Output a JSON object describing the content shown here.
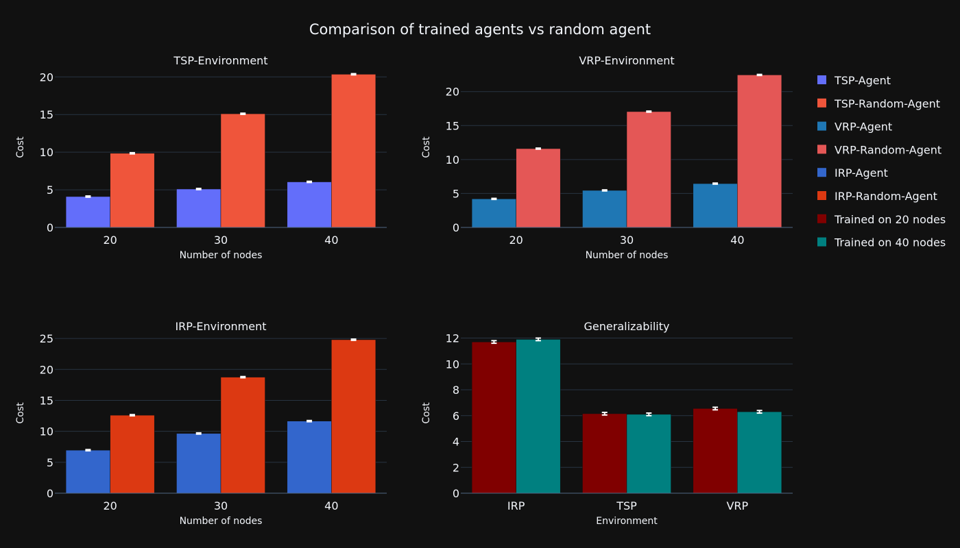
{
  "title": "Comparison of trained agents vs random agent",
  "chart_data": [
    {
      "type": "bar",
      "title": "TSP-Environment",
      "xlabel": "Number of nodes",
      "ylabel": "Cost",
      "categories": [
        "20",
        "30",
        "40"
      ],
      "ylim": [
        0,
        21.3
      ],
      "yticks": [
        0,
        5,
        10,
        15,
        20
      ],
      "grid": true,
      "series": [
        {
          "name": "TSP-Agent",
          "color": "#636efa",
          "values": [
            4.1,
            5.1,
            6.05
          ],
          "error": [
            0.08,
            0.08,
            0.08
          ]
        },
        {
          "name": "TSP-Random-Agent",
          "color": "#ef553b",
          "values": [
            9.85,
            15.1,
            20.35
          ],
          "error": [
            0.08,
            0.08,
            0.08
          ]
        }
      ]
    },
    {
      "type": "bar",
      "title": "VRP-Environment",
      "xlabel": "Number of nodes",
      "ylabel": "Cost",
      "categories": [
        "20",
        "30",
        "40"
      ],
      "ylim": [
        0,
        23.6
      ],
      "yticks": [
        0,
        5,
        10,
        15,
        20
      ],
      "grid": true,
      "series": [
        {
          "name": "VRP-Agent",
          "color": "#1f77b4",
          "values": [
            4.2,
            5.45,
            6.45
          ],
          "error": [
            0.08,
            0.08,
            0.08
          ]
        },
        {
          "name": "VRP-Random-Agent",
          "color": "#e45756",
          "values": [
            11.6,
            17.05,
            22.45
          ],
          "error": [
            0.08,
            0.08,
            0.08
          ]
        }
      ]
    },
    {
      "type": "bar",
      "title": "IRP-Environment",
      "xlabel": "Number of nodes",
      "ylabel": "Cost",
      "categories": [
        "20",
        "30",
        "40"
      ],
      "ylim": [
        0,
        25.9
      ],
      "yticks": [
        0,
        5,
        10,
        15,
        20,
        25
      ],
      "grid": true,
      "series": [
        {
          "name": "IRP-Agent",
          "color": "#3366cc",
          "values": [
            6.95,
            9.65,
            11.65
          ],
          "error": [
            0.1,
            0.1,
            0.1
          ]
        },
        {
          "name": "IRP-Random-Agent",
          "color": "#dc3912",
          "values": [
            12.6,
            18.75,
            24.8
          ],
          "error": [
            0.1,
            0.1,
            0.1
          ]
        }
      ]
    },
    {
      "type": "bar",
      "title": "Generalizability",
      "xlabel": "Environment",
      "ylabel": "Cost",
      "categories": [
        "IRP",
        "TSP",
        "VRP"
      ],
      "ylim": [
        0,
        12.4
      ],
      "yticks": [
        0,
        2,
        4,
        6,
        8,
        10,
        12
      ],
      "grid": true,
      "series": [
        {
          "name": "Trained on 20 nodes",
          "color": "#800000",
          "values": [
            11.7,
            6.15,
            6.55
          ],
          "error": [
            0.1,
            0.1,
            0.1
          ]
        },
        {
          "name": "Trained on 40 nodes",
          "color": "#008080",
          "values": [
            11.9,
            6.1,
            6.3
          ],
          "error": [
            0.1,
            0.1,
            0.1
          ]
        }
      ]
    }
  ],
  "legend": {
    "placement": "top-right",
    "items": [
      {
        "label": "TSP-Agent",
        "color": "#636efa"
      },
      {
        "label": "TSP-Random-Agent",
        "color": "#ef553b"
      },
      {
        "label": "VRP-Agent",
        "color": "#1f77b4"
      },
      {
        "label": "VRP-Random-Agent",
        "color": "#e45756"
      },
      {
        "label": "IRP-Agent",
        "color": "#3366cc"
      },
      {
        "label": "IRP-Random-Agent",
        "color": "#dc3912"
      },
      {
        "label": "Trained on 20 nodes",
        "color": "#800000"
      },
      {
        "label": "Trained on 40 nodes",
        "color": "#008080"
      }
    ]
  }
}
